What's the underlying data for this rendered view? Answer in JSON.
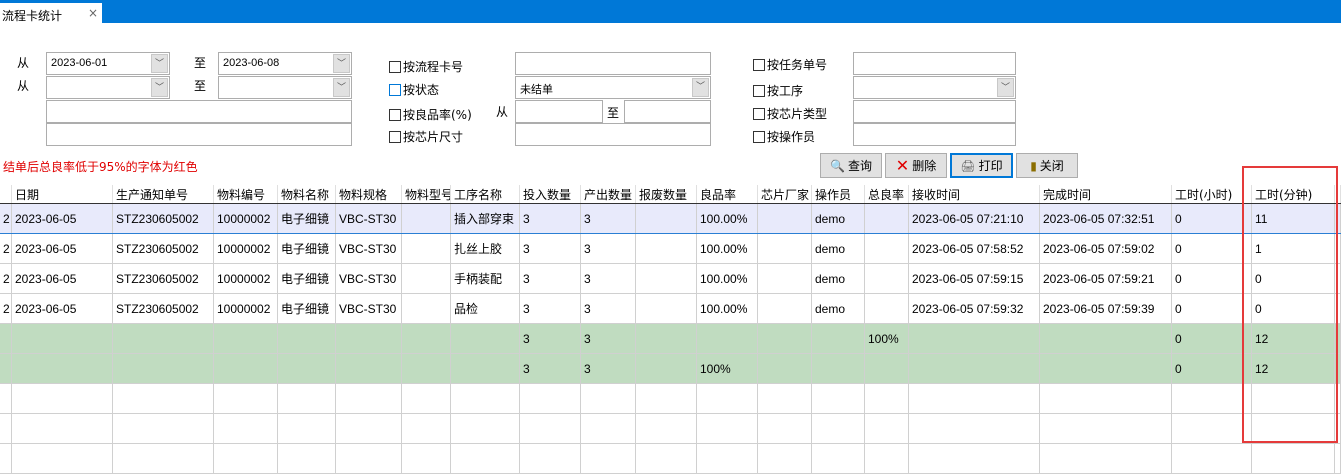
{
  "tab": {
    "title": "流程卡统计",
    "close": "×"
  },
  "filters": {
    "from": "从",
    "to": "至",
    "date_from": "2023-06-01",
    "date_to": "2023-06-08",
    "date2_from": "",
    "date2_to": "",
    "cb_card_no": "按流程卡号",
    "cb_status": "按状态",
    "status_value": "未结单",
    "cb_yield": "按良品率(%)",
    "yield_from": "从",
    "yield_to": "至",
    "cb_chip_size": "按芯片尺寸",
    "cb_task_no": "按任务单号",
    "cb_process": "按工序",
    "cb_chip_type": "按芯片类型",
    "cb_operator": "按操作员"
  },
  "note": "结单后总良率低于95%的字体为红色",
  "buttons": {
    "query": "查询",
    "delete": "删除",
    "print": "打印",
    "close": "关闭"
  },
  "colors": {
    "accent": "#0078d7",
    "summary_row": "#c0dcc0",
    "selected_row": "#e8eafb",
    "note": "#e00000",
    "highlight_box": "#e53a3a"
  },
  "table": {
    "headers": [
      "",
      "日期",
      "生产通知单号",
      "物料编号",
      "物料名称",
      "物料规格",
      "物料型号",
      "工序名称",
      "投入数量",
      "产出数量",
      "报废数量",
      "良品率",
      "芯片厂家",
      "操作员",
      "总良率",
      "接收时间",
      "完成时间",
      "工时(小时)",
      "工时(分钟)",
      ""
    ],
    "rows": [
      [
        "2",
        "2023-06-05",
        "STZ230605002",
        "10000002",
        "电子细镜",
        "VBC-ST30",
        "",
        "插入部穿束",
        "3",
        "3",
        "",
        "100.00%",
        "",
        "demo",
        "",
        "2023-06-05 07:21:10",
        "2023-06-05 07:32:51",
        "0",
        "11",
        ""
      ],
      [
        "2",
        "2023-06-05",
        "STZ230605002",
        "10000002",
        "电子细镜",
        "VBC-ST30",
        "",
        "扎丝上胶",
        "3",
        "3",
        "",
        "100.00%",
        "",
        "demo",
        "",
        "2023-06-05 07:58:52",
        "2023-06-05 07:59:02",
        "0",
        "1",
        ""
      ],
      [
        "2",
        "2023-06-05",
        "STZ230605002",
        "10000002",
        "电子细镜",
        "VBC-ST30",
        "",
        "手柄装配",
        "3",
        "3",
        "",
        "100.00%",
        "",
        "demo",
        "",
        "2023-06-05 07:59:15",
        "2023-06-05 07:59:21",
        "0",
        "0",
        ""
      ],
      [
        "2",
        "2023-06-05",
        "STZ230605002",
        "10000002",
        "电子细镜",
        "VBC-ST30",
        "",
        "品检",
        "3",
        "3",
        "",
        "100.00%",
        "",
        "demo",
        "",
        "2023-06-05 07:59:32",
        "2023-06-05 07:59:39",
        "0",
        "0",
        ""
      ],
      [
        "",
        "",
        "",
        "",
        "",
        "",
        "",
        "",
        "3",
        "3",
        "",
        "",
        "",
        "",
        "100%",
        "",
        "",
        "0",
        "12",
        ""
      ],
      [
        "",
        "",
        "",
        "",
        "",
        "",
        "",
        "",
        "3",
        "3",
        "",
        "100%",
        "",
        "",
        "",
        "",
        "",
        "0",
        "12",
        ""
      ],
      [
        "",
        "",
        "",
        "",
        "",
        "",
        "",
        "",
        "",
        "",
        "",
        "",
        "",
        "",
        "",
        "",
        "",
        "",
        "",
        ""
      ],
      [
        "",
        "",
        "",
        "",
        "",
        "",
        "",
        "",
        "",
        "",
        "",
        "",
        "",
        "",
        "",
        "",
        "",
        "",
        "",
        ""
      ],
      [
        "",
        "",
        "",
        "",
        "",
        "",
        "",
        "",
        "",
        "",
        "",
        "",
        "",
        "",
        "",
        "",
        "",
        "",
        "",
        ""
      ]
    ]
  }
}
